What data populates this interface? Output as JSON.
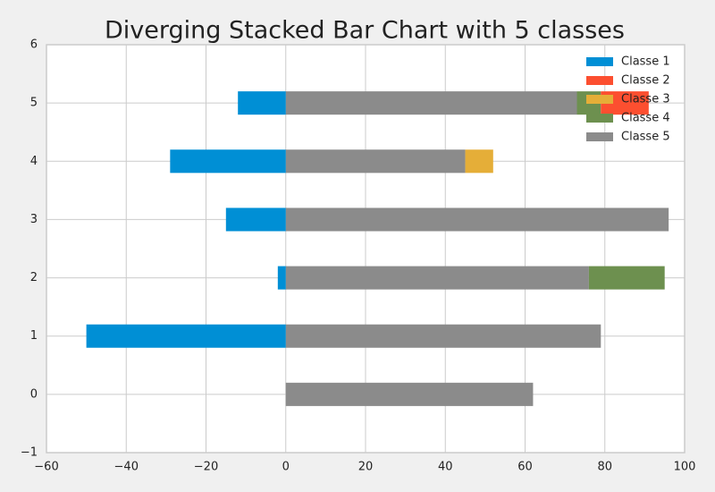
{
  "chart_data": {
    "type": "diverging-stacked-bar",
    "title": "Diverging Stacked Bar Chart with 5 classes",
    "categories": [
      0,
      1,
      2,
      3,
      4,
      5
    ],
    "series": [
      {
        "name": "Classe 1",
        "color": "#008fd5",
        "values": [
          0,
          -50,
          -2,
          -15,
          -29,
          -12
        ]
      },
      {
        "name": "Classe 2",
        "color": "#fc4f30",
        "values": [
          0,
          0,
          0,
          0,
          0,
          12
        ]
      },
      {
        "name": "Classe 3",
        "color": "#e5ae38",
        "values": [
          0,
          0,
          0,
          0,
          7,
          0
        ]
      },
      {
        "name": "Classe 4",
        "color": "#6d904f",
        "values": [
          0,
          0,
          19,
          0,
          0,
          6
        ]
      },
      {
        "name": "Classe 5",
        "color": "#8b8b8b",
        "values": [
          62,
          79,
          76,
          96,
          45,
          73
        ]
      }
    ],
    "xlim": [
      -60,
      100
    ],
    "xticks": [
      {
        "value": -60,
        "label": "−60"
      },
      {
        "value": -40,
        "label": "−40"
      },
      {
        "value": -20,
        "label": "−20"
      },
      0,
      20,
      40,
      60,
      80,
      100
    ],
    "ylim": [
      -1,
      6
    ],
    "yticks": [
      {
        "value": -1,
        "label": "−1"
      },
      0,
      1,
      2,
      3,
      4,
      5,
      6
    ],
    "grid": true,
    "legend": "upper right"
  }
}
